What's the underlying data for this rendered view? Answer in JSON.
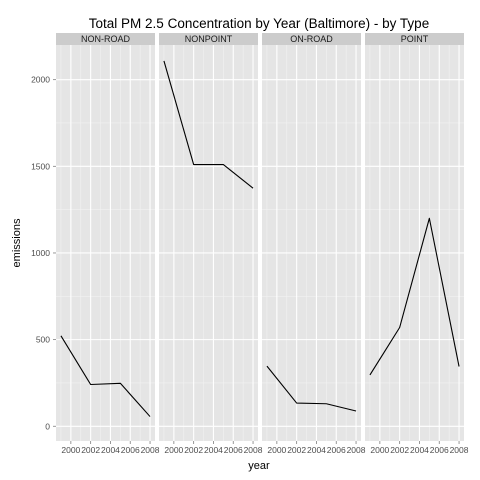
{
  "chart_data": {
    "type": "line",
    "title": "Total PM 2.5 Concentration by Year (Baltimore) - by Type",
    "xlabel": "year",
    "ylabel": "emissions",
    "x": [
      1999,
      2002,
      2005,
      2008
    ],
    "x_ticks": [
      2000,
      2002,
      2004,
      2006,
      2008
    ],
    "x_tick_labels": [
      "2000",
      "2002",
      "2004",
      "2006",
      "2008"
    ],
    "xlim": [
      1998.5,
      2008.5
    ],
    "y_ticks": [
      0,
      500,
      1000,
      1500,
      2000
    ],
    "y_tick_labels": [
      "0",
      "500",
      "1000",
      "1500",
      "2000"
    ],
    "ylim": [
      -85,
      2200
    ],
    "grid": true,
    "facets": [
      "NON-ROAD",
      "NONPOINT",
      "ON-ROAD",
      "POINT"
    ],
    "series": [
      {
        "name": "NON-ROAD",
        "values": [
          522,
          241,
          248,
          56
        ]
      },
      {
        "name": "NONPOINT",
        "values": [
          2108,
          1510,
          1510,
          1374
        ]
      },
      {
        "name": "ON-ROAD",
        "values": [
          347,
          134,
          130,
          88
        ]
      },
      {
        "name": "POINT",
        "values": [
          296,
          570,
          1200,
          345
        ]
      }
    ],
    "colors": {
      "panel_background": "#E5E5E5",
      "strip_background": "#CCCCCC",
      "major_grid": "#FFFFFF",
      "minor_grid": "#F2F2F2",
      "line": "#000000",
      "tick_mark": "#7F7F7F"
    }
  }
}
